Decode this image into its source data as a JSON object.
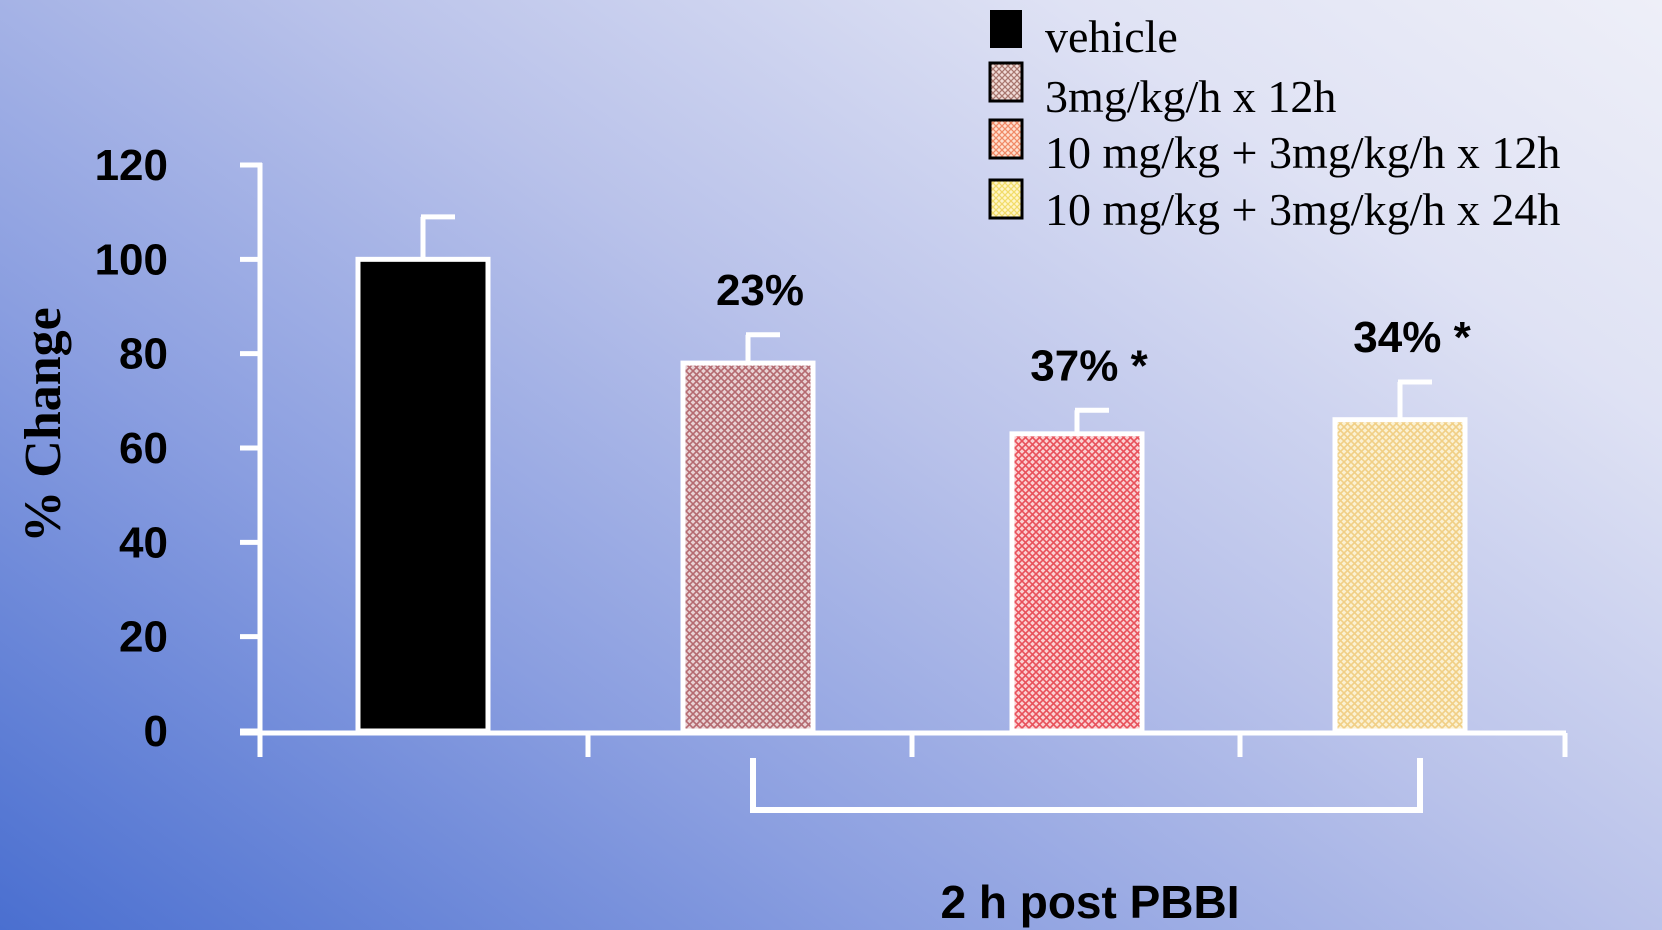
{
  "chart_data": {
    "type": "bar",
    "title": "",
    "ylabel": "% Change",
    "xlabel": "2 h post PBBI",
    "ylim": [
      0,
      120
    ],
    "yticks": [
      "0",
      "20",
      "40",
      "60",
      "80",
      "100",
      "120"
    ],
    "grid": false,
    "legend_position": "top-right",
    "categories": [
      "vehicle",
      "3mg/kg/h x 12h",
      "10 mg/kg + 3mg/kg/h x 12h",
      "10 mg/kg + 3mg/kg/h x 24h"
    ],
    "values": [
      100,
      78,
      63,
      66
    ],
    "errors": [
      9,
      6,
      5,
      8
    ],
    "annotations": [
      "",
      "23%",
      "37% *",
      "34% *"
    ],
    "colors": [
      "#000000",
      "#c98a8e",
      "#ef6e74",
      "#f6dc9c"
    ],
    "patterns": [
      "solid",
      "crosshatch",
      "crosshatch",
      "crosshatch"
    ]
  }
}
